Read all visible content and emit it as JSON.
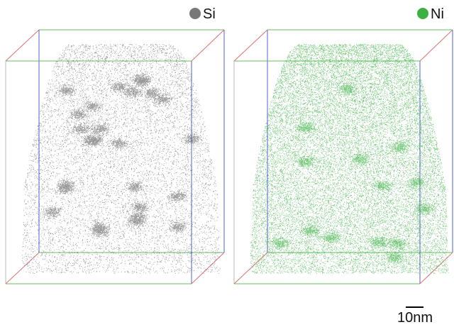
{
  "panels": [
    {
      "label": "Si"
    },
    {
      "label": "Ni"
    }
  ],
  "scale_bar": {
    "label": "10nm"
  }
}
